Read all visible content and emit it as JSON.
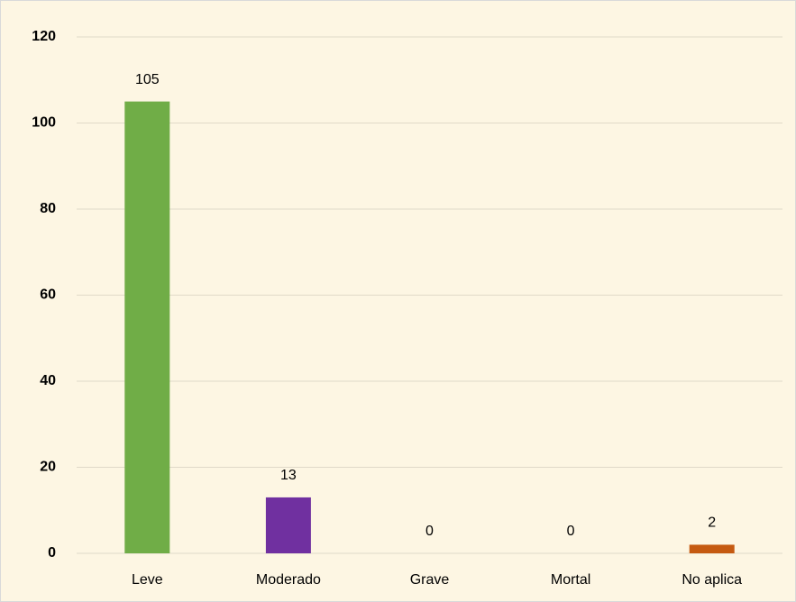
{
  "chart_data": {
    "type": "bar",
    "categories": [
      "Leve",
      "Moderado",
      "Grave",
      "Mortal",
      "No aplica"
    ],
    "values": [
      105,
      13,
      0,
      0,
      2
    ],
    "colors": [
      "#70ad47",
      "#7030a0",
      "#4472c4",
      "#4472c4",
      "#c55a11"
    ],
    "ylim": [
      0,
      120
    ],
    "yticks": [
      0,
      20,
      40,
      60,
      80,
      100,
      120
    ],
    "grid": true
  }
}
